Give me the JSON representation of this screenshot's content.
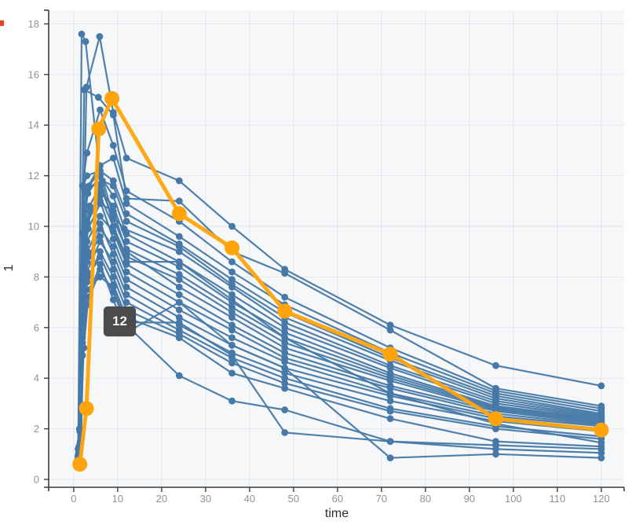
{
  "chart_data": {
    "type": "line",
    "title": "",
    "xlabel": "time",
    "ylabel": "1",
    "x_ticks": [
      0,
      10,
      20,
      30,
      40,
      50,
      60,
      70,
      80,
      90,
      100,
      110,
      120
    ],
    "y_ticks": [
      0,
      2,
      4,
      6,
      8,
      10,
      12,
      14,
      16,
      18
    ],
    "xlim": [
      -5.7,
      125.2
    ],
    "ylim": [
      -0.3,
      18.5
    ],
    "grid": true,
    "legend": "none",
    "tooltip": {
      "label": "12"
    },
    "colors": {
      "line": "#4679a8",
      "highlight": "#ffa40d",
      "panel_bg": "#f6f7f9",
      "gridline": "#e3e7ec",
      "axis": "#3c3c3c",
      "tick_label": "#8d939b",
      "title_text": "#2d2d2d",
      "tooltip_bg": "#4b4b4b",
      "tooltip_text": "#f5f5f5",
      "corner_mark": "#e8402c"
    },
    "highlighted_subject": "12",
    "series": [
      {
        "id": "1",
        "highlight": false,
        "t": [
          1,
          1.8,
          2.7,
          6,
          9,
          12,
          24,
          36,
          48,
          72,
          96,
          120
        ],
        "v": [
          0.7,
          17.6,
          17.3,
          12.0,
          10.0,
          8.6,
          8.6,
          7.1,
          5.6,
          3.4,
          2.2,
          1.45
        ]
      },
      {
        "id": "2",
        "highlight": false,
        "t": [
          1.2,
          2.9,
          5.9,
          9,
          12,
          24,
          36,
          48,
          72,
          96,
          120
        ],
        "v": [
          1.0,
          15.5,
          17.5,
          14.5,
          12.7,
          11.8,
          10.0,
          8.3,
          6.1,
          4.5,
          3.7
        ]
      },
      {
        "id": "3",
        "highlight": false,
        "t": [
          1,
          2.4,
          5.6,
          9,
          12,
          24,
          36,
          48,
          72,
          96,
          120
        ],
        "v": [
          0.8,
          15.4,
          15.1,
          14.4,
          11.1,
          11.0,
          9.0,
          8.15,
          5.9,
          3.6,
          2.9
        ]
      },
      {
        "id": "4",
        "highlight": false,
        "t": [
          1.4,
          2,
          3,
          6,
          9,
          12,
          24,
          36,
          48,
          72,
          96,
          120
        ],
        "v": [
          1.9,
          11.6,
          12.9,
          14.6,
          13.2,
          11.4,
          10.2,
          8.6,
          7.2,
          5.2,
          3.5,
          2.8
        ]
      },
      {
        "id": "5",
        "highlight": false,
        "t": [
          1,
          2,
          3,
          6,
          9,
          12,
          24,
          36,
          48,
          72,
          96,
          120
        ],
        "v": [
          0.6,
          6.6,
          11.5,
          12.4,
          12.7,
          10.9,
          9.6,
          8.2,
          6.9,
          5.0,
          3.4,
          2.7
        ]
      },
      {
        "id": "6",
        "highlight": false,
        "t": [
          1.5,
          2.5,
          3.5,
          6,
          9,
          12,
          24,
          36,
          48,
          72,
          96,
          120
        ],
        "v": [
          1.5,
          11.4,
          11.6,
          12.2,
          11.8,
          10.5,
          9.3,
          7.9,
          6.6,
          4.8,
          3.3,
          2.6
        ]
      },
      {
        "id": "7",
        "highlight": false,
        "t": [
          1,
          2,
          3,
          6.5,
          9,
          12,
          24,
          36,
          48,
          72,
          96,
          120
        ],
        "v": [
          0.8,
          8.1,
          11.5,
          11.8,
          11.6,
          10.2,
          9.2,
          7.7,
          6.4,
          4.7,
          3.2,
          2.55
        ]
      },
      {
        "id": "8",
        "highlight": false,
        "t": [
          1.3,
          2.2,
          3,
          6,
          9,
          11.5,
          24,
          36,
          48,
          72,
          96,
          120
        ],
        "v": [
          2.0,
          11.6,
          12.0,
          12.2,
          10.4,
          9.9,
          9.0,
          7.6,
          6.2,
          4.5,
          3.1,
          2.5
        ]
      },
      {
        "id": "9",
        "highlight": false,
        "t": [
          1,
          2,
          3.2,
          6,
          9,
          12,
          24,
          36,
          48,
          72,
          96,
          120
        ],
        "v": [
          1.2,
          9.7,
          11.3,
          12.0,
          11.2,
          9.7,
          8.6,
          7.3,
          6.0,
          4.4,
          3.0,
          2.45
        ]
      },
      {
        "id": "10",
        "highlight": false,
        "t": [
          1,
          2,
          3,
          6,
          9,
          12,
          24,
          36,
          48,
          72,
          96,
          120
        ],
        "v": [
          0.7,
          6.7,
          10.2,
          11.4,
          10.8,
          9.4,
          8.4,
          7.0,
          5.8,
          4.2,
          2.9,
          2.4
        ]
      },
      {
        "id": "11",
        "highlight": false,
        "t": [
          1.6,
          2.6,
          3.6,
          6,
          9,
          12,
          24,
          36,
          48,
          72,
          96,
          120
        ],
        "v": [
          1.6,
          9.9,
          10.8,
          11.6,
          10.3,
          9.1,
          8.1,
          6.8,
          5.6,
          4.1,
          2.85,
          2.35
        ]
      },
      {
        "id": "13",
        "highlight": false,
        "t": [
          1,
          2,
          3,
          6,
          9,
          12,
          24,
          36,
          48,
          72,
          96,
          120
        ],
        "v": [
          0.85,
          7.9,
          10.1,
          11.2,
          10.0,
          8.8,
          7.9,
          6.6,
          5.4,
          4.0,
          2.8,
          2.3
        ]
      },
      {
        "id": "14",
        "highlight": false,
        "t": [
          1.2,
          2.3,
          3.3,
          6,
          9,
          12,
          24,
          36,
          48,
          72,
          96,
          120
        ],
        "v": [
          1.3,
          8.7,
          9.9,
          10.9,
          10.6,
          9.0,
          7.6,
          6.4,
          5.2,
          3.9,
          2.75,
          2.25
        ]
      },
      {
        "id": "15",
        "highlight": false,
        "t": [
          1,
          2,
          3,
          6,
          9,
          12,
          24,
          36,
          48,
          72,
          96,
          120
        ],
        "v": [
          0.95,
          6.9,
          9.4,
          10.4,
          9.8,
          8.5,
          7.3,
          6.1,
          5.0,
          3.7,
          2.7,
          2.2
        ]
      },
      {
        "id": "16",
        "highlight": false,
        "t": [
          1.7,
          2.7,
          3.7,
          6,
          9,
          12,
          24,
          36,
          48,
          72,
          96,
          120
        ],
        "v": [
          1.7,
          9.2,
          10.6,
          11.0,
          9.5,
          8.2,
          7.0,
          5.9,
          4.8,
          3.6,
          2.6,
          2.15
        ]
      },
      {
        "id": "17",
        "highlight": false,
        "t": [
          1,
          2,
          3,
          6,
          9,
          12,
          24,
          36,
          48,
          72,
          96,
          120
        ],
        "v": [
          0.65,
          5.9,
          8.6,
          9.9,
          9.2,
          7.9,
          6.7,
          5.6,
          4.65,
          3.4,
          2.5,
          2.1
        ]
      },
      {
        "id": "18",
        "highlight": false,
        "t": [
          1.1,
          2.1,
          3.1,
          6,
          9,
          12,
          24,
          36,
          48,
          72,
          96,
          120
        ],
        "v": [
          1.05,
          7.4,
          9.0,
          10.1,
          8.9,
          7.6,
          6.4,
          5.3,
          4.4,
          3.3,
          2.4,
          2.0
        ]
      },
      {
        "id": "19",
        "highlight": false,
        "t": [
          1,
          2,
          3,
          6,
          9,
          12,
          24,
          36,
          48,
          72,
          96,
          120
        ],
        "v": [
          0.75,
          6.2,
          8.2,
          9.4,
          8.6,
          7.3,
          6.1,
          5.0,
          4.2,
          3.1,
          2.3,
          1.9
        ]
      },
      {
        "id": "20",
        "highlight": false,
        "t": [
          1.4,
          2.4,
          3.4,
          6,
          9,
          12,
          24,
          36,
          48,
          72,
          96,
          120
        ],
        "v": [
          1.4,
          7.7,
          8.8,
          9.6,
          8.3,
          7.0,
          5.9,
          4.8,
          4.0,
          2.8,
          2.1,
          1.7
        ]
      },
      {
        "id": "21",
        "highlight": false,
        "t": [
          1,
          2,
          3,
          6,
          9,
          12,
          24,
          36,
          48,
          72,
          96,
          120
        ],
        "v": [
          0.9,
          5.6,
          7.8,
          9.0,
          8.0,
          6.7,
          5.75,
          4.6,
          3.8,
          2.7,
          2.0,
          1.6
        ]
      },
      {
        "id": "22",
        "highlight": false,
        "t": [
          1.2,
          2.2,
          3.2,
          6,
          9,
          12,
          24,
          36,
          48,
          72,
          96,
          120
        ],
        "v": [
          1.15,
          6.4,
          8.0,
          8.8,
          7.7,
          6.4,
          5.6,
          4.2,
          3.6,
          2.4,
          1.5,
          1.3
        ]
      },
      {
        "id": "23",
        "highlight": false,
        "t": [
          1,
          2,
          3,
          6,
          9,
          12,
          24,
          36,
          48,
          72,
          96,
          120
        ],
        "v": [
          0.7,
          4.9,
          6.9,
          8.3,
          7.4,
          6.1,
          4.1,
          3.1,
          2.75,
          1.5,
          1.2,
          1.05
        ]
      },
      {
        "id": "24",
        "highlight": false,
        "t": [
          1.3,
          2.3,
          3.3,
          6,
          9,
          12,
          24,
          36,
          48,
          72,
          96,
          120
        ],
        "v": [
          1.0,
          5.2,
          7.2,
          8.5,
          7.1,
          5.8,
          7.0,
          5.3,
          4.4,
          0.85,
          1.0,
          0.85
        ]
      },
      {
        "id": "25",
        "highlight": false,
        "t": [
          1,
          2,
          3,
          6,
          9,
          12,
          24,
          36,
          48,
          72,
          96,
          120
        ],
        "v": [
          0.8,
          5.4,
          7.5,
          8.0,
          7.6,
          6.2,
          6.2,
          4.9,
          1.85,
          1.5,
          1.35,
          1.2
        ]
      },
      {
        "id": "12",
        "highlight": true,
        "t": [
          1.4,
          2.9,
          5.7,
          8.7,
          24,
          36,
          48,
          72,
          96,
          120
        ],
        "v": [
          0.6,
          2.8,
          13.85,
          15.05,
          10.5,
          9.15,
          6.65,
          4.95,
          2.4,
          1.95
        ]
      }
    ]
  }
}
